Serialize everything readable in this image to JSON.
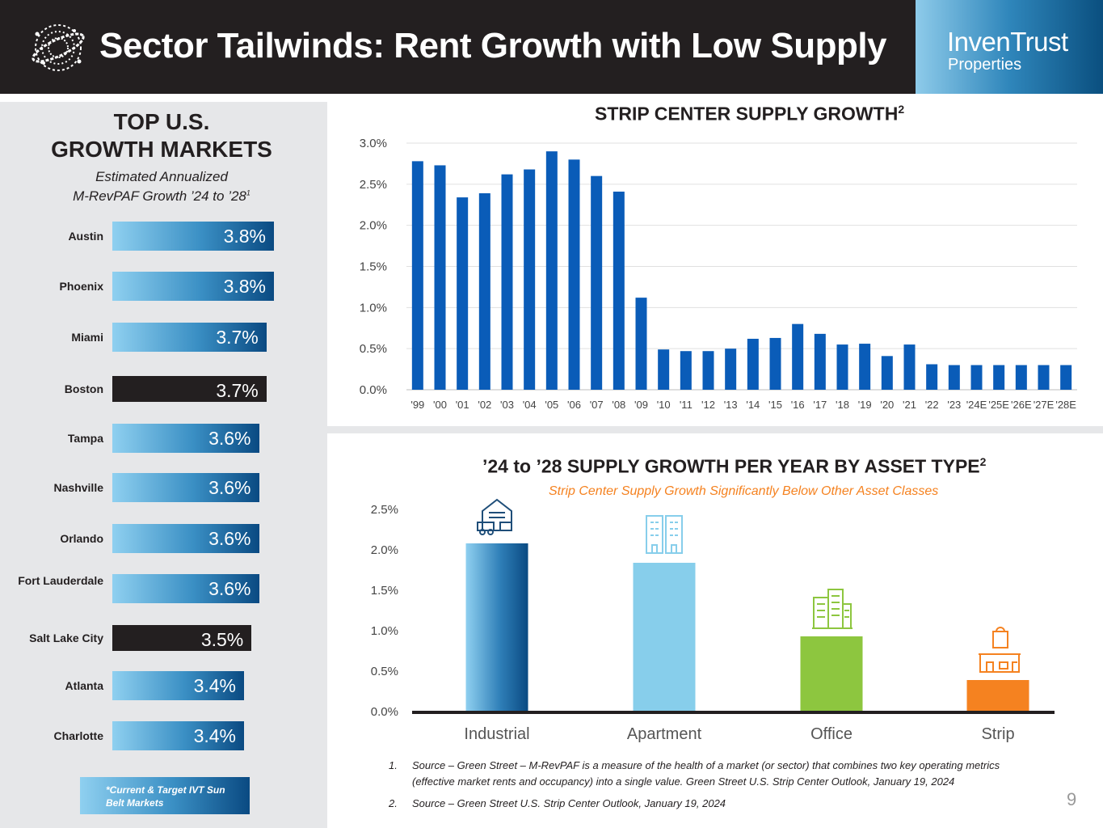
{
  "header": {
    "title": "Sector Tailwinds: Rent Growth with Low Supply",
    "brand_name": "InvenTrust",
    "brand_sub": "Properties"
  },
  "left_panel": {
    "title_line1": "TOP U.S.",
    "title_line2": "GROWTH MARKETS",
    "subtitle_line1": "Estimated Annualized",
    "subtitle_line2": "M-RevPAF Growth ’24 to ’28",
    "subtitle_sup": "1",
    "markets": [
      {
        "name": "Austin",
        "value": 3.8,
        "label": "3.8%",
        "highlight": false
      },
      {
        "name": "Phoenix",
        "value": 3.8,
        "label": "3.8%",
        "highlight": false
      },
      {
        "name": "Miami",
        "value": 3.7,
        "label": "3.7%",
        "highlight": false
      },
      {
        "name": "Boston",
        "value": 3.7,
        "label": "3.7%",
        "highlight": true
      },
      {
        "name": "Tampa",
        "value": 3.6,
        "label": "3.6%",
        "highlight": false
      },
      {
        "name": "Nashville",
        "value": 3.6,
        "label": "3.6%",
        "highlight": false
      },
      {
        "name": "Orlando",
        "value": 3.6,
        "label": "3.6%",
        "highlight": false
      },
      {
        "name": "Fort Lauderdale",
        "value": 3.6,
        "label": "3.6%",
        "highlight": false
      },
      {
        "name": "Salt Lake City",
        "value": 3.5,
        "label": "3.5%",
        "highlight": true
      },
      {
        "name": "Atlanta",
        "value": 3.4,
        "label": "3.4%",
        "highlight": false
      },
      {
        "name": "Charlotte",
        "value": 3.4,
        "label": "3.4%",
        "highlight": false
      }
    ],
    "note": "*Current & Target IVT Sun Belt Markets"
  },
  "chart_data": [
    {
      "type": "bar",
      "title": "STRIP CENTER SUPPLY GROWTH",
      "title_sup": "2",
      "categories": [
        "'99",
        "'00",
        "'01",
        "'02",
        "'03",
        "'04",
        "'05",
        "'06",
        "'07",
        "'08",
        "'09",
        "'10",
        "'11",
        "'12",
        "'13",
        "'14",
        "'15",
        "'16",
        "'17",
        "'18",
        "'19",
        "'20",
        "'21",
        "'22",
        "'23",
        "'24E",
        "'25E",
        "'26E",
        "'27E",
        "'28E"
      ],
      "values": [
        2.78,
        2.73,
        2.34,
        2.39,
        2.62,
        2.68,
        2.9,
        2.8,
        2.6,
        2.41,
        1.12,
        0.49,
        0.47,
        0.47,
        0.5,
        0.62,
        0.63,
        0.8,
        0.68,
        0.55,
        0.56,
        0.41,
        0.55,
        0.31,
        0.3,
        0.3,
        0.3,
        0.3,
        0.3,
        0.3
      ],
      "yticks": [
        "0.0%",
        "0.5%",
        "1.0%",
        "1.5%",
        "2.0%",
        "2.5%",
        "3.0%"
      ],
      "ylim": [
        0,
        3.0
      ],
      "color": "#0a5cb8",
      "grid": true
    },
    {
      "type": "bar",
      "title": "’24 to ’28 SUPPLY GROWTH PER YEAR BY ASSET TYPE",
      "title_sup": "2",
      "subtitle": "Strip Center Supply Growth Significantly Below Other Asset Classes",
      "categories": [
        "Industrial",
        "Apartment",
        "Office",
        "Strip"
      ],
      "values": [
        2.08,
        1.84,
        0.93,
        0.39
      ],
      "colors": [
        "#1466a8",
        "#87ceeb",
        "#8dc63f",
        "#f58220"
      ],
      "icons": [
        "warehouse-icon",
        "apartment-icon",
        "office-icon",
        "strip-center-icon"
      ],
      "yticks": [
        "0.0%",
        "0.5%",
        "1.0%",
        "1.5%",
        "2.0%",
        "2.5%"
      ],
      "ylim": [
        0,
        2.5
      ],
      "grid": false
    }
  ],
  "footnotes": [
    {
      "num": "1.",
      "text": "Source – Green Street – M-RevPAF is a measure of the health of a market (or sector) that combines two key operating metrics (effective market rents and occupancy) into a single value. Green Street U.S. Strip Center Outlook, January 19, 2024"
    },
    {
      "num": "2.",
      "text": "Source – Green Street U.S. Strip Center Outlook, January 19, 2024"
    }
  ],
  "page_number": "9"
}
